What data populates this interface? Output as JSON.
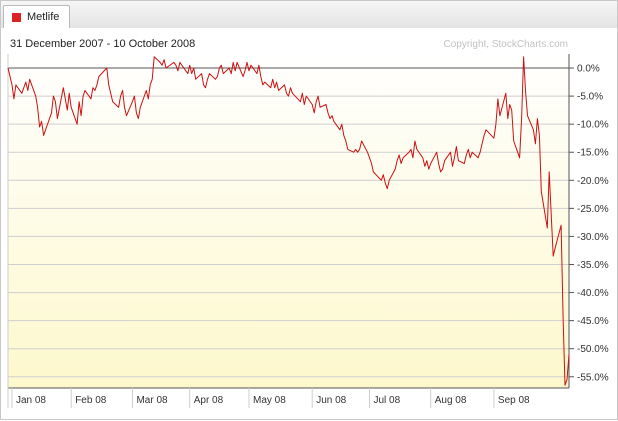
{
  "legend": {
    "label": "Metlife",
    "color": "#dd2222"
  },
  "header": {
    "date_range": "31 December 2007 - 10 October 2008",
    "copyright": "Copyright, StockCharts.com"
  },
  "chart_data": {
    "type": "line",
    "title": "",
    "xlabel": "",
    "ylabel": "",
    "ylim": [
      -57,
      2.5
    ],
    "yticks": [
      {
        "value": 0,
        "label": "0.0%"
      },
      {
        "value": -5,
        "label": "-5.0%"
      },
      {
        "value": -10,
        "label": "-10.0%"
      },
      {
        "value": -15,
        "label": "-15.0%"
      },
      {
        "value": -20,
        "label": "-20.0%"
      },
      {
        "value": -25,
        "label": "-25.0%"
      },
      {
        "value": -30,
        "label": "-30.0%"
      },
      {
        "value": -35,
        "label": "-35.0%"
      },
      {
        "value": -40,
        "label": "-40.0%"
      },
      {
        "value": -45,
        "label": "-45.0%"
      },
      {
        "value": -50,
        "label": "-50.0%"
      },
      {
        "value": -55,
        "label": "-55.0%"
      }
    ],
    "xrange": [
      "2007-12-31",
      "2008-10-10"
    ],
    "xticks": [
      {
        "date": "2008-01-02",
        "label": "Jan 08"
      },
      {
        "date": "2008-02-01",
        "label": "Feb 08"
      },
      {
        "date": "2008-03-03",
        "label": "Mar 08"
      },
      {
        "date": "2008-04-01",
        "label": "Apr 08"
      },
      {
        "date": "2008-05-01",
        "label": "May 08"
      },
      {
        "date": "2008-06-02",
        "label": "Jun 08"
      },
      {
        "date": "2008-07-01",
        "label": "Jul 08"
      },
      {
        "date": "2008-08-01",
        "label": "Aug 08"
      },
      {
        "date": "2008-09-02",
        "label": "Sep 08"
      }
    ],
    "grid": true,
    "series": [
      {
        "color": "#cc1111",
        "points": [
          [
            "2007-12-31",
            0
          ],
          [
            "2008-01-02",
            -3
          ],
          [
            "2008-01-03",
            -5.5
          ],
          [
            "2008-01-04",
            -3
          ],
          [
            "2008-01-07",
            -4.5
          ],
          [
            "2008-01-08",
            -3.5
          ],
          [
            "2008-01-09",
            -2.5
          ],
          [
            "2008-01-10",
            -4
          ],
          [
            "2008-01-11",
            -2
          ],
          [
            "2008-01-14",
            -5
          ],
          [
            "2008-01-15",
            -7
          ],
          [
            "2008-01-16",
            -10.5
          ],
          [
            "2008-01-17",
            -9.5
          ],
          [
            "2008-01-18",
            -12
          ],
          [
            "2008-01-22",
            -8
          ],
          [
            "2008-01-23",
            -5
          ],
          [
            "2008-01-24",
            -6
          ],
          [
            "2008-01-25",
            -9
          ],
          [
            "2008-01-28",
            -3.5
          ],
          [
            "2008-01-29",
            -5.5
          ],
          [
            "2008-01-30",
            -7.5
          ],
          [
            "2008-01-31",
            -4.5
          ],
          [
            "2008-02-01",
            -7
          ],
          [
            "2008-02-04",
            -10
          ],
          [
            "2008-02-05",
            -6
          ],
          [
            "2008-02-06",
            -8.5
          ],
          [
            "2008-02-07",
            -5
          ],
          [
            "2008-02-08",
            -4
          ],
          [
            "2008-02-11",
            -5.5
          ],
          [
            "2008-02-12",
            -3.5
          ],
          [
            "2008-02-13",
            -4
          ],
          [
            "2008-02-14",
            -3
          ],
          [
            "2008-02-15",
            -1.5
          ],
          [
            "2008-02-19",
            0
          ],
          [
            "2008-02-20",
            -3
          ],
          [
            "2008-02-21",
            -4.5
          ],
          [
            "2008-02-22",
            -6
          ],
          [
            "2008-02-25",
            -7
          ],
          [
            "2008-02-26",
            -5
          ],
          [
            "2008-02-27",
            -4
          ],
          [
            "2008-02-28",
            -7
          ],
          [
            "2008-02-29",
            -8.5
          ],
          [
            "2008-03-03",
            -6
          ],
          [
            "2008-03-04",
            -5
          ],
          [
            "2008-03-05",
            -8
          ],
          [
            "2008-03-06",
            -9
          ],
          [
            "2008-03-07",
            -7
          ],
          [
            "2008-03-10",
            -4
          ],
          [
            "2008-03-11",
            -5.5
          ],
          [
            "2008-03-12",
            -3
          ],
          [
            "2008-03-13",
            -2
          ],
          [
            "2008-03-14",
            2
          ],
          [
            "2008-03-17",
            1
          ],
          [
            "2008-03-18",
            0.5
          ],
          [
            "2008-03-19",
            1.5
          ],
          [
            "2008-03-20",
            0
          ],
          [
            "2008-03-24",
            1
          ],
          [
            "2008-03-25",
            0.5
          ],
          [
            "2008-03-26",
            -0.5
          ],
          [
            "2008-03-27",
            1
          ],
          [
            "2008-03-28",
            0.5
          ],
          [
            "2008-03-31",
            -1
          ],
          [
            "2008-04-01",
            0.5
          ],
          [
            "2008-04-02",
            -1
          ],
          [
            "2008-04-03",
            0
          ],
          [
            "2008-04-04",
            -2
          ],
          [
            "2008-04-07",
            -1
          ],
          [
            "2008-04-08",
            -3
          ],
          [
            "2008-04-09",
            -3.5
          ],
          [
            "2008-04-10",
            -2
          ],
          [
            "2008-04-11",
            -1
          ],
          [
            "2008-04-14",
            -2
          ],
          [
            "2008-04-15",
            -1.5
          ],
          [
            "2008-04-16",
            0
          ],
          [
            "2008-04-17",
            0.5
          ],
          [
            "2008-04-18",
            -1
          ],
          [
            "2008-04-21",
            0
          ],
          [
            "2008-04-22",
            -1
          ],
          [
            "2008-04-23",
            1
          ],
          [
            "2008-04-24",
            -0.5
          ],
          [
            "2008-04-25",
            1
          ],
          [
            "2008-04-28",
            -1.5
          ],
          [
            "2008-04-29",
            -0.5
          ],
          [
            "2008-04-30",
            1
          ],
          [
            "2008-05-01",
            -0.5
          ],
          [
            "2008-05-02",
            0.5
          ],
          [
            "2008-05-05",
            -1
          ],
          [
            "2008-05-06",
            0.5
          ],
          [
            "2008-05-07",
            -1.5
          ],
          [
            "2008-05-08",
            -3
          ],
          [
            "2008-05-09",
            -2.5
          ],
          [
            "2008-05-12",
            -3.5
          ],
          [
            "2008-05-13",
            -2
          ],
          [
            "2008-05-14",
            -3.5
          ],
          [
            "2008-05-15",
            -2.5
          ],
          [
            "2008-05-16",
            -4
          ],
          [
            "2008-05-19",
            -3
          ],
          [
            "2008-05-20",
            -4.5
          ],
          [
            "2008-05-21",
            -5
          ],
          [
            "2008-05-22",
            -3.5
          ],
          [
            "2008-05-23",
            -4.5
          ],
          [
            "2008-05-27",
            -6
          ],
          [
            "2008-05-28",
            -4.5
          ],
          [
            "2008-05-29",
            -6.5
          ],
          [
            "2008-05-30",
            -5
          ],
          [
            "2008-06-02",
            -6.5
          ],
          [
            "2008-06-03",
            -8
          ],
          [
            "2008-06-04",
            -6
          ],
          [
            "2008-06-05",
            -5
          ],
          [
            "2008-06-06",
            -7
          ],
          [
            "2008-06-09",
            -6.5
          ],
          [
            "2008-06-10",
            -8
          ],
          [
            "2008-06-11",
            -9
          ],
          [
            "2008-06-12",
            -8.5
          ],
          [
            "2008-06-13",
            -9.5
          ],
          [
            "2008-06-16",
            -11
          ],
          [
            "2008-06-17",
            -10
          ],
          [
            "2008-06-18",
            -12
          ],
          [
            "2008-06-19",
            -13
          ],
          [
            "2008-06-20",
            -14.5
          ],
          [
            "2008-06-23",
            -15
          ],
          [
            "2008-06-24",
            -14.5
          ],
          [
            "2008-06-25",
            -15
          ],
          [
            "2008-06-26",
            -14.5
          ],
          [
            "2008-06-27",
            -13
          ],
          [
            "2008-06-30",
            -15
          ],
          [
            "2008-07-01",
            -16
          ],
          [
            "2008-07-02",
            -17
          ],
          [
            "2008-07-03",
            -18.5
          ],
          [
            "2008-07-07",
            -20
          ],
          [
            "2008-07-08",
            -19
          ],
          [
            "2008-07-09",
            -20.5
          ],
          [
            "2008-07-10",
            -21.5
          ],
          [
            "2008-07-11",
            -20
          ],
          [
            "2008-07-14",
            -18
          ],
          [
            "2008-07-15",
            -16.5
          ],
          [
            "2008-07-16",
            -15.5
          ],
          [
            "2008-07-17",
            -17
          ],
          [
            "2008-07-18",
            -16
          ],
          [
            "2008-07-21",
            -15
          ],
          [
            "2008-07-22",
            -14.5
          ],
          [
            "2008-07-23",
            -16
          ],
          [
            "2008-07-24",
            -13
          ],
          [
            "2008-07-25",
            -14.5
          ],
          [
            "2008-07-28",
            -16
          ],
          [
            "2008-07-29",
            -17.5
          ],
          [
            "2008-07-30",
            -16.5
          ],
          [
            "2008-07-31",
            -18
          ],
          [
            "2008-08-01",
            -17
          ],
          [
            "2008-08-04",
            -15
          ],
          [
            "2008-08-05",
            -17
          ],
          [
            "2008-08-06",
            -18.5
          ],
          [
            "2008-08-07",
            -18
          ],
          [
            "2008-08-08",
            -16.5
          ],
          [
            "2008-08-11",
            -15
          ],
          [
            "2008-08-12",
            -17.5
          ],
          [
            "2008-08-13",
            -16
          ],
          [
            "2008-08-14",
            -14
          ],
          [
            "2008-08-15",
            -16.5
          ],
          [
            "2008-08-18",
            -17
          ],
          [
            "2008-08-19",
            -15.5
          ],
          [
            "2008-08-20",
            -14.5
          ],
          [
            "2008-08-21",
            -16
          ],
          [
            "2008-08-22",
            -15
          ],
          [
            "2008-08-25",
            -16
          ],
          [
            "2008-08-26",
            -15
          ],
          [
            "2008-08-27",
            -13.5
          ],
          [
            "2008-08-28",
            -12
          ],
          [
            "2008-08-29",
            -11
          ],
          [
            "2008-09-02",
            -12.5
          ],
          [
            "2008-09-03",
            -10
          ],
          [
            "2008-09-04",
            -5.5
          ],
          [
            "2008-09-05",
            -8.5
          ],
          [
            "2008-09-08",
            -4.5
          ],
          [
            "2008-09-09",
            -9
          ],
          [
            "2008-09-10",
            -6.5
          ],
          [
            "2008-09-11",
            -7.5
          ],
          [
            "2008-09-12",
            -13
          ],
          [
            "2008-09-15",
            -16
          ],
          [
            "2008-09-16",
            -9
          ],
          [
            "2008-09-17",
            2
          ],
          [
            "2008-09-18",
            -4
          ],
          [
            "2008-09-19",
            -8.5
          ],
          [
            "2008-09-22",
            -11
          ],
          [
            "2008-09-23",
            -13.5
          ],
          [
            "2008-09-24",
            -9
          ],
          [
            "2008-09-25",
            -12
          ],
          [
            "2008-09-26",
            -22
          ],
          [
            "2008-09-29",
            -28.5
          ],
          [
            "2008-09-30",
            -18.5
          ],
          [
            "2008-10-01",
            -26
          ],
          [
            "2008-10-02",
            -33.5
          ],
          [
            "2008-10-03",
            -32
          ],
          [
            "2008-10-06",
            -28
          ],
          [
            "2008-10-07",
            -44.5
          ],
          [
            "2008-10-08",
            -56.5
          ],
          [
            "2008-10-09",
            -55.5
          ],
          [
            "2008-10-10",
            -51
          ]
        ]
      }
    ]
  }
}
